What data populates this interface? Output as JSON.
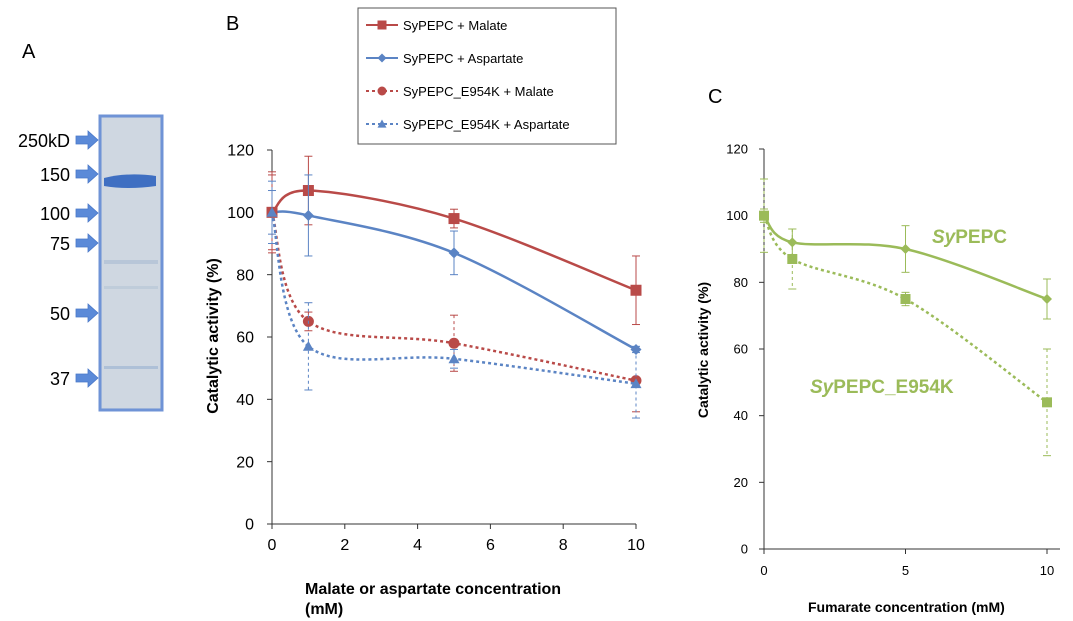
{
  "panels": {
    "a": "A",
    "b": "B",
    "c": "C"
  },
  "gel": {
    "markers": [
      {
        "label": "250kD",
        "y_kd": 250
      },
      {
        "label": "150",
        "y_kd": 150
      },
      {
        "label": "100",
        "y_kd": 100
      },
      {
        "label": "75",
        "y_kd": 75
      },
      {
        "label": "50",
        "y_kd": 50
      },
      {
        "label": "37",
        "y_kd": 37
      }
    ],
    "colors": {
      "arrow": "#5b8ad8",
      "frame": "#6f93d6",
      "band": "#3f6fc2",
      "lane": "#c7d2de"
    }
  },
  "chart_data": [
    {
      "type": "line",
      "panel": "B",
      "xlabel": "Malate or aspartate concentration (mM)",
      "ylabel": "Catalytic activity (%)",
      "xlim": [
        0,
        10
      ],
      "ylim": [
        0,
        120
      ],
      "xticks": [
        0,
        2,
        4,
        6,
        8,
        10
      ],
      "yticks": [
        0,
        20,
        40,
        60,
        80,
        100,
        120
      ],
      "legend_position": "top",
      "grid": false,
      "series": [
        {
          "name": "SyPEPC + Malate",
          "x": [
            0,
            1,
            5,
            10
          ],
          "y": [
            100,
            107,
            98,
            75
          ],
          "err": [
            13,
            11,
            3,
            11
          ],
          "color": "#b94a48",
          "marker": "square",
          "dash": "solid"
        },
        {
          "name": "SyPEPC + Aspartate",
          "x": [
            0,
            1,
            5,
            10
          ],
          "y": [
            100,
            99,
            87,
            56
          ],
          "err": [
            7,
            13,
            7,
            1
          ],
          "color": "#5b84c4",
          "marker": "diamond",
          "dash": "solid"
        },
        {
          "name": "SyPEPC_E954K + Malate",
          "x": [
            0,
            1,
            5,
            10
          ],
          "y": [
            100,
            65,
            58,
            46
          ],
          "err": [
            12,
            3,
            9,
            10
          ],
          "color": "#b94a48",
          "marker": "circle",
          "dash": "dotted"
        },
        {
          "name": "SyPEPC_E954K + Aspartate",
          "x": [
            0,
            1,
            5,
            10
          ],
          "y": [
            100,
            57,
            53,
            45
          ],
          "err": [
            10,
            14,
            3,
            11
          ],
          "color": "#5b84c4",
          "marker": "triangle",
          "dash": "dotted"
        }
      ]
    },
    {
      "type": "line",
      "panel": "C",
      "xlabel": "Fumarate concentration (mM)",
      "ylabel": "Catalytic activity (%)",
      "xlim": [
        0,
        10
      ],
      "ylim": [
        0,
        120
      ],
      "xticks": [
        0,
        5,
        10
      ],
      "yticks": [
        0,
        20,
        40,
        60,
        80,
        100,
        120
      ],
      "grid": false,
      "annotations": [
        {
          "italic": "Sy",
          "rest": "PEPC",
          "series": "SyPEPC"
        },
        {
          "italic": "Sy",
          "rest": "PEPC_E954K",
          "series": "SyPEPC_E954K"
        }
      ],
      "series": [
        {
          "name": "SyPEPC",
          "x": [
            0,
            1,
            5,
            10
          ],
          "y": [
            100,
            92,
            90,
            75
          ],
          "err": [
            2,
            4,
            7,
            6
          ],
          "color": "#9bbb59",
          "marker": "diamond",
          "dash": "solid"
        },
        {
          "name": "SyPEPC_E954K",
          "x": [
            0,
            1,
            5,
            10
          ],
          "y": [
            100,
            87,
            75,
            44
          ],
          "err": [
            11,
            9,
            2,
            16
          ],
          "color": "#9bbb59",
          "marker": "square",
          "dash": "dotted"
        }
      ]
    }
  ]
}
